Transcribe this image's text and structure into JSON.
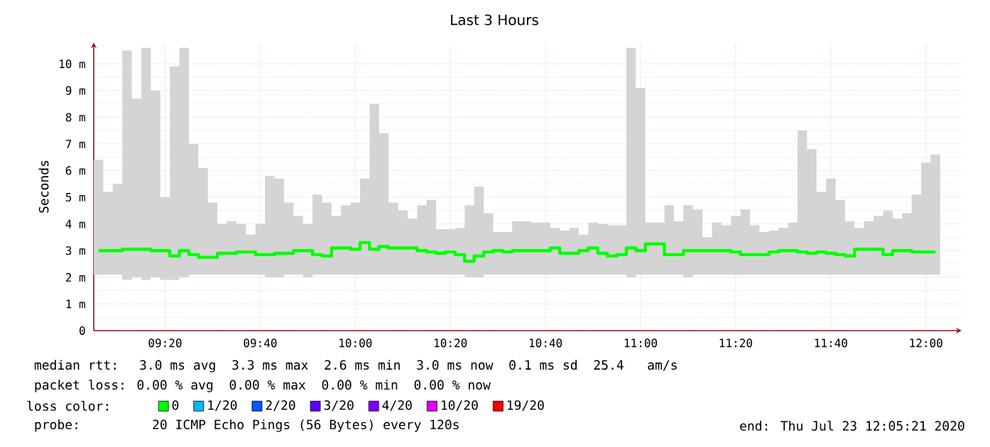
{
  "chart_data": {
    "type": "step",
    "title": "Last 3 Hours",
    "ylabel": "Seconds",
    "x": [
      9.1,
      9.1333,
      9.1667,
      9.2,
      9.2333,
      9.2667,
      9.3,
      9.3333,
      9.3667,
      9.4,
      9.4333,
      9.4667,
      9.5,
      9.5333,
      9.5667,
      9.6,
      9.6333,
      9.6667,
      9.7,
      9.7333,
      9.7667,
      9.8,
      9.8333,
      9.8667,
      9.9,
      9.9333,
      9.9667,
      10.0,
      10.0333,
      10.0667,
      10.1,
      10.1333,
      10.1667,
      10.2,
      10.2333,
      10.2667,
      10.3,
      10.3333,
      10.3667,
      10.4,
      10.4333,
      10.4667,
      10.5,
      10.5333,
      10.5667,
      10.6,
      10.6333,
      10.6667,
      10.7,
      10.7333,
      10.7667,
      10.8,
      10.8333,
      10.8667,
      10.9,
      10.9333,
      10.9667,
      11.0,
      11.0333,
      11.0667,
      11.1,
      11.1333,
      11.1667,
      11.2,
      11.2333,
      11.2667,
      11.3,
      11.3333,
      11.3667,
      11.4,
      11.4333,
      11.4667,
      11.5,
      11.5333,
      11.5667,
      11.6,
      11.6333,
      11.6667,
      11.7,
      11.7333,
      11.7667,
      11.8,
      11.8333,
      11.8667,
      11.9,
      11.9333,
      11.9667,
      12.0,
      12.0333
    ],
    "series": [
      {
        "name": "0",
        "color": "#00ff00",
        "values": [
          3.0,
          3.0,
          3.0,
          3.05,
          3.05,
          3.05,
          3.0,
          3.0,
          2.8,
          3.0,
          2.85,
          2.75,
          2.75,
          2.9,
          2.9,
          2.95,
          2.95,
          2.85,
          2.85,
          2.9,
          2.9,
          3.0,
          3.0,
          2.85,
          2.8,
          3.1,
          3.1,
          3.05,
          3.3,
          3.05,
          3.15,
          3.1,
          3.1,
          3.1,
          3.0,
          2.95,
          2.9,
          2.95,
          2.85,
          2.6,
          2.8,
          2.95,
          3.0,
          2.95,
          3.0,
          3.0,
          3.0,
          3.0,
          3.1,
          2.9,
          2.9,
          3.0,
          3.1,
          2.9,
          2.8,
          2.85,
          3.1,
          3.0,
          3.25,
          3.25,
          2.85,
          2.85,
          3.0,
          3.0,
          3.0,
          3.0,
          3.0,
          2.95,
          2.85,
          2.85,
          2.85,
          2.95,
          3.0,
          3.0,
          2.95,
          2.9,
          2.95,
          2.9,
          2.85,
          2.8,
          3.05,
          3.05,
          3.05,
          2.85,
          3.0,
          3.0,
          2.95,
          2.95,
          2.95
        ],
        "lower": [
          2.1,
          2.1,
          2.1,
          1.9,
          2.0,
          1.9,
          2.0,
          1.9,
          1.9,
          2.0,
          2.1,
          2.1,
          2.1,
          2.1,
          2.1,
          2.1,
          2.1,
          2.1,
          2.0,
          2.0,
          2.1,
          2.1,
          2.0,
          2.1,
          2.1,
          2.1,
          2.1,
          2.1,
          2.1,
          2.1,
          2.1,
          2.1,
          2.1,
          2.1,
          2.1,
          2.1,
          2.1,
          2.1,
          2.1,
          2.0,
          2.0,
          2.1,
          2.1,
          2.1,
          2.1,
          2.1,
          2.1,
          2.1,
          2.1,
          2.1,
          2.1,
          2.1,
          2.1,
          2.1,
          2.1,
          2.1,
          2.0,
          2.1,
          2.1,
          2.1,
          2.1,
          2.1,
          2.0,
          2.1,
          2.1,
          2.1,
          2.1,
          2.1,
          2.1,
          2.1,
          2.1,
          2.1,
          2.1,
          2.1,
          2.1,
          2.1,
          2.1,
          2.1,
          2.1,
          2.1,
          2.1,
          2.1,
          2.1,
          2.1,
          2.1,
          2.1,
          2.1,
          2.1,
          2.1
        ],
        "upper": [
          6.4,
          5.2,
          5.5,
          10.5,
          8.7,
          10.6,
          9.0,
          5.0,
          9.9,
          10.6,
          7.0,
          6.1,
          4.8,
          4.0,
          4.1,
          4.0,
          3.6,
          4.0,
          5.8,
          5.7,
          4.8,
          4.3,
          4.0,
          5.1,
          4.8,
          4.3,
          4.7,
          4.8,
          5.7,
          8.5,
          7.4,
          4.8,
          4.5,
          4.2,
          4.7,
          4.9,
          3.8,
          3.8,
          3.85,
          4.7,
          5.4,
          4.4,
          3.7,
          3.7,
          4.1,
          4.1,
          4.05,
          4.05,
          3.85,
          3.75,
          3.85,
          3.6,
          4.05,
          4.0,
          3.95,
          3.95,
          10.6,
          9.1,
          4.05,
          4.05,
          4.7,
          4.1,
          4.7,
          4.55,
          3.5,
          4.05,
          3.95,
          4.3,
          4.55,
          3.95,
          3.7,
          3.75,
          3.85,
          4.05,
          7.5,
          6.8,
          5.2,
          5.7,
          4.9,
          4.1,
          3.85,
          4.1,
          4.3,
          4.5,
          4.2,
          4.4,
          5.1,
          6.3,
          6.6
        ]
      },
      {
        "name": "1/20",
        "color": "#00b8ff",
        "values": [
          null,
          null,
          null,
          null,
          null,
          null,
          null,
          null,
          null,
          null,
          null,
          null,
          null,
          null,
          null,
          null,
          null,
          null,
          null,
          null,
          null,
          null,
          null,
          null,
          null,
          null,
          null,
          null,
          null,
          null,
          null,
          null,
          null,
          null,
          null,
          null,
          null,
          null,
          null,
          null,
          null,
          null,
          null,
          null,
          null,
          null,
          null,
          null,
          null,
          null,
          null,
          null,
          null,
          null,
          null,
          null,
          null,
          null,
          null,
          null,
          null,
          null,
          null,
          null,
          null,
          null,
          null,
          null,
          null,
          null,
          null,
          null,
          null,
          null,
          null,
          null,
          null,
          null,
          null,
          null,
          null,
          null,
          null,
          null,
          null,
          null,
          null,
          null,
          null
        ]
      },
      {
        "name": "2/20",
        "color": "#0059ff",
        "values": [
          null,
          null,
          null,
          null,
          null,
          null,
          null,
          null,
          null,
          null,
          null,
          null,
          null,
          null,
          null,
          null,
          null,
          null,
          null,
          null,
          null,
          null,
          null,
          null,
          null,
          null,
          null,
          null,
          null,
          null,
          null,
          null,
          null,
          null,
          null,
          null,
          null,
          null,
          null,
          null,
          null,
          null,
          null,
          null,
          null,
          null,
          null,
          null,
          null,
          null,
          null,
          null,
          null,
          null,
          null,
          null,
          null,
          null,
          null,
          null,
          null,
          null,
          null,
          null,
          null,
          null,
          null,
          null,
          null,
          null,
          null,
          null,
          null,
          null,
          null,
          null,
          null,
          null,
          null,
          null,
          null,
          null,
          null,
          null,
          null,
          null,
          null,
          null,
          null
        ]
      },
      {
        "name": "3/20",
        "color": "#5e00ff",
        "values": [
          null,
          null,
          null,
          null,
          null,
          null,
          null,
          null,
          null,
          null,
          null,
          null,
          null,
          null,
          null,
          null,
          null,
          null,
          null,
          null,
          null,
          null,
          null,
          null,
          null,
          null,
          null,
          null,
          null,
          null,
          null,
          null,
          null,
          null,
          null,
          null,
          null,
          null,
          null,
          null,
          null,
          null,
          null,
          null,
          null,
          null,
          null,
          null,
          null,
          null,
          null,
          null,
          null,
          null,
          null,
          null,
          null,
          null,
          null,
          null,
          null,
          null,
          null,
          null,
          null,
          null,
          null,
          null,
          null,
          null,
          null,
          null,
          null,
          null,
          null,
          null,
          null,
          null,
          null,
          null,
          null,
          null,
          null,
          null,
          null,
          null,
          null,
          null,
          null
        ]
      },
      {
        "name": "4/20",
        "color": "#7e00ff",
        "values": [
          null,
          null,
          null,
          null,
          null,
          null,
          null,
          null,
          null,
          null,
          null,
          null,
          null,
          null,
          null,
          null,
          null,
          null,
          null,
          null,
          null,
          null,
          null,
          null,
          null,
          null,
          null,
          null,
          null,
          null,
          null,
          null,
          null,
          null,
          null,
          null,
          null,
          null,
          null,
          null,
          null,
          null,
          null,
          null,
          null,
          null,
          null,
          null,
          null,
          null,
          null,
          null,
          null,
          null,
          null,
          null,
          null,
          null,
          null,
          null,
          null,
          null,
          null,
          null,
          null,
          null,
          null,
          null,
          null,
          null,
          null,
          null,
          null,
          null,
          null,
          null,
          null,
          null,
          null,
          null,
          null,
          null,
          null,
          null,
          null,
          null,
          null,
          null,
          null
        ]
      },
      {
        "name": "10/20",
        "color": "#dd00ff",
        "values": [
          null,
          null,
          null,
          null,
          null,
          null,
          null,
          null,
          null,
          null,
          null,
          null,
          null,
          null,
          null,
          null,
          null,
          null,
          null,
          null,
          null,
          null,
          null,
          null,
          null,
          null,
          null,
          null,
          null,
          null,
          null,
          null,
          null,
          null,
          null,
          null,
          null,
          null,
          null,
          null,
          null,
          null,
          null,
          null,
          null,
          null,
          null,
          null,
          null,
          null,
          null,
          null,
          null,
          null,
          null,
          null,
          null,
          null,
          null,
          null,
          null,
          null,
          null,
          null,
          null,
          null,
          null,
          null,
          null,
          null,
          null,
          null,
          null,
          null,
          null,
          null,
          null,
          null,
          null,
          null,
          null,
          null,
          null,
          null,
          null,
          null,
          null,
          null,
          null
        ]
      },
      {
        "name": "19/20",
        "color": "#ff0000",
        "values": [
          null,
          null,
          null,
          null,
          null,
          null,
          null,
          null,
          null,
          null,
          null,
          null,
          null,
          null,
          null,
          null,
          null,
          null,
          null,
          null,
          null,
          null,
          null,
          null,
          null,
          null,
          null,
          null,
          null,
          null,
          null,
          null,
          null,
          null,
          null,
          null,
          null,
          null,
          null,
          null,
          null,
          null,
          null,
          null,
          null,
          null,
          null,
          null,
          null,
          null,
          null,
          null,
          null,
          null,
          null,
          null,
          null,
          null,
          null,
          null,
          null,
          null,
          null,
          null,
          null,
          null,
          null,
          null,
          null,
          null,
          null,
          null,
          null,
          null,
          null,
          null,
          null,
          null,
          null,
          null,
          null,
          null,
          null,
          null,
          null,
          null,
          null,
          null,
          null
        ]
      }
    ],
    "legend_title": "loss color:",
    "legend": "bottom",
    "xlim": [
      9.0833,
      12.125
    ],
    "xticks": [
      {
        "value": 9.3333,
        "label": "09:20"
      },
      {
        "value": 9.6667,
        "label": "09:40"
      },
      {
        "value": 10.0,
        "label": "10:00"
      },
      {
        "value": 10.3333,
        "label": "10:20"
      },
      {
        "value": 10.6667,
        "label": "10:40"
      },
      {
        "value": 11.0,
        "label": "11:00"
      },
      {
        "value": 11.3333,
        "label": "11:20"
      },
      {
        "value": 11.6667,
        "label": "11:40"
      },
      {
        "value": 12.0,
        "label": "12:00"
      }
    ],
    "ylim": [
      0,
      10.8
    ],
    "yticks": [
      {
        "value": 0,
        "label": "0"
      },
      {
        "value": 1,
        "label": "1 m"
      },
      {
        "value": 2,
        "label": "2 m"
      },
      {
        "value": 3,
        "label": "3 m"
      },
      {
        "value": 4,
        "label": "4 m"
      },
      {
        "value": 5,
        "label": "5 m"
      },
      {
        "value": 6,
        "label": "6 m"
      },
      {
        "value": 7,
        "label": "7 m"
      },
      {
        "value": 8,
        "label": "8 m"
      },
      {
        "value": 9,
        "label": "9 m"
      },
      {
        "value": 10,
        "label": "10 m"
      }
    ],
    "grid": true,
    "annotations": [
      "median rtt:  3.0 ms avg  3.3 ms max  2.6 ms min  3.0 ms now  0.1 ms sd  25.4   am/s",
      "packet loss: 0.00 % avg  0.00 % max  0.00 % min  0.00 % now",
      "probe:       20 ICMP Echo Pings (56 Bytes) every 120s",
      "end: Thu Jul 23 12:05:21 2020"
    ]
  }
}
